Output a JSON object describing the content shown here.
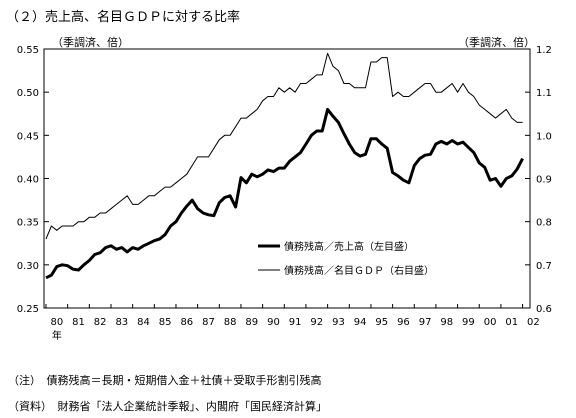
{
  "title": "（２）売上高、名目ＧＤＰに対する比率",
  "unit_left": "（季調済、倍）",
  "unit_right": "（季調済、倍）",
  "note": "（注）　債務残高＝長期・短期借入金＋社債＋受取手形割引残高",
  "source": "（資料）　財務省「法人企業統計季報」、内閣府「国民経済計算」",
  "chart_data": {
    "type": "line",
    "x_categories": [
      "80",
      "81",
      "82",
      "83",
      "84",
      "85",
      "86",
      "87",
      "88",
      "89",
      "90",
      "91",
      "92",
      "93",
      "94",
      "95",
      "96",
      "97",
      "98",
      "99",
      "00",
      "01",
      "02"
    ],
    "x_unit_label": "年",
    "y_left": {
      "ticks": [
        "0.25",
        "0.30",
        "0.35",
        "0.40",
        "0.45",
        "0.50",
        "0.55"
      ],
      "min": 0.25,
      "max": 0.55
    },
    "y_right": {
      "ticks": [
        "0.6",
        "0.7",
        "0.8",
        "0.9",
        "1.0",
        "1.1",
        "1.2"
      ],
      "min": 0.6,
      "max": 1.2
    },
    "legend": {
      "placement": "center-right"
    },
    "series": [
      {
        "name": "債務残高／売上高（左目盛）",
        "axis": "left",
        "style": "thick",
        "x": [
          1980.0,
          1980.25,
          1980.5,
          1980.75,
          1981.0,
          1981.25,
          1981.5,
          1981.75,
          1982.0,
          1982.25,
          1982.5,
          1982.75,
          1983.0,
          1983.25,
          1983.5,
          1983.75,
          1984.0,
          1984.25,
          1984.5,
          1984.75,
          1985.0,
          1985.25,
          1985.5,
          1985.75,
          1986.0,
          1986.25,
          1986.5,
          1986.75,
          1987.0,
          1987.25,
          1987.5,
          1987.75,
          1988.0,
          1988.25,
          1988.5,
          1988.75,
          1989.0,
          1989.25,
          1989.5,
          1989.75,
          1990.0,
          1990.25,
          1990.5,
          1990.75,
          1991.0,
          1991.25,
          1991.5,
          1991.75,
          1992.0,
          1992.25,
          1992.5,
          1992.75,
          1993.0,
          1993.25,
          1993.5,
          1993.75,
          1994.0,
          1994.25,
          1994.5,
          1994.75,
          1995.0,
          1995.25,
          1995.5,
          1995.75,
          1996.0,
          1996.25,
          1996.5,
          1996.75,
          1997.0,
          1997.25,
          1997.5,
          1997.75,
          1998.0,
          1998.25,
          1998.5,
          1998.75,
          1999.0,
          1999.25,
          1999.5,
          1999.75,
          2000.0,
          2000.25,
          2000.5,
          2000.75,
          2001.0,
          2001.25,
          2001.5,
          2001.75,
          2002.0
        ],
        "values": [
          0.285,
          0.288,
          0.298,
          0.3,
          0.299,
          0.295,
          0.294,
          0.3,
          0.305,
          0.312,
          0.314,
          0.32,
          0.322,
          0.318,
          0.32,
          0.315,
          0.32,
          0.318,
          0.322,
          0.325,
          0.328,
          0.33,
          0.335,
          0.345,
          0.35,
          0.36,
          0.368,
          0.375,
          0.365,
          0.36,
          0.358,
          0.357,
          0.372,
          0.378,
          0.38,
          0.367,
          0.401,
          0.395,
          0.405,
          0.402,
          0.405,
          0.41,
          0.408,
          0.412,
          0.412,
          0.42,
          0.425,
          0.43,
          0.44,
          0.45,
          0.455,
          0.455,
          0.48,
          0.472,
          0.465,
          0.452,
          0.44,
          0.43,
          0.426,
          0.428,
          0.446,
          0.446,
          0.44,
          0.435,
          0.407,
          0.403,
          0.398,
          0.395,
          0.415,
          0.423,
          0.427,
          0.428,
          0.44,
          0.443,
          0.44,
          0.444,
          0.44,
          0.442,
          0.436,
          0.43,
          0.418,
          0.413,
          0.398,
          0.4,
          0.391,
          0.4,
          0.403,
          0.411,
          0.423
        ]
      },
      {
        "name": "債務残高／名目ＧＤＰ（右目盛）",
        "axis": "right",
        "style": "thin",
        "x": [
          1980.0,
          1980.25,
          1980.5,
          1980.75,
          1981.0,
          1981.25,
          1981.5,
          1981.75,
          1982.0,
          1982.25,
          1982.5,
          1982.75,
          1983.0,
          1983.25,
          1983.5,
          1983.75,
          1984.0,
          1984.25,
          1984.5,
          1984.75,
          1985.0,
          1985.25,
          1985.5,
          1985.75,
          1986.0,
          1986.25,
          1986.5,
          1986.75,
          1987.0,
          1987.25,
          1987.5,
          1987.75,
          1988.0,
          1988.25,
          1988.5,
          1988.75,
          1989.0,
          1989.25,
          1989.5,
          1989.75,
          1990.0,
          1990.25,
          1990.5,
          1990.75,
          1991.0,
          1991.25,
          1991.5,
          1991.75,
          1992.0,
          1992.25,
          1992.5,
          1992.75,
          1993.0,
          1993.25,
          1993.5,
          1993.75,
          1994.0,
          1994.25,
          1994.5,
          1994.75,
          1995.0,
          1995.25,
          1995.5,
          1995.75,
          1996.0,
          1996.25,
          1996.5,
          1996.75,
          1997.0,
          1997.25,
          1997.5,
          1997.75,
          1998.0,
          1998.25,
          1998.5,
          1998.75,
          1999.0,
          1999.25,
          1999.5,
          1999.75,
          2000.0,
          2000.25,
          2000.5,
          2000.75,
          2001.0,
          2001.25,
          2001.5,
          2001.75,
          2002.0
        ],
        "values": [
          0.76,
          0.79,
          0.78,
          0.79,
          0.79,
          0.79,
          0.8,
          0.8,
          0.81,
          0.81,
          0.82,
          0.82,
          0.83,
          0.84,
          0.85,
          0.86,
          0.84,
          0.84,
          0.85,
          0.86,
          0.86,
          0.87,
          0.88,
          0.88,
          0.89,
          0.9,
          0.91,
          0.93,
          0.95,
          0.95,
          0.95,
          0.97,
          0.99,
          1.0,
          1.0,
          1.02,
          1.04,
          1.04,
          1.05,
          1.06,
          1.08,
          1.09,
          1.09,
          1.11,
          1.1,
          1.11,
          1.1,
          1.12,
          1.12,
          1.13,
          1.14,
          1.14,
          1.19,
          1.16,
          1.15,
          1.12,
          1.12,
          1.11,
          1.11,
          1.11,
          1.17,
          1.17,
          1.18,
          1.18,
          1.09,
          1.1,
          1.09,
          1.09,
          1.1,
          1.11,
          1.12,
          1.12,
          1.1,
          1.1,
          1.11,
          1.12,
          1.1,
          1.12,
          1.1,
          1.09,
          1.07,
          1.06,
          1.05,
          1.04,
          1.05,
          1.06,
          1.04,
          1.03,
          1.03
        ]
      }
    ]
  }
}
